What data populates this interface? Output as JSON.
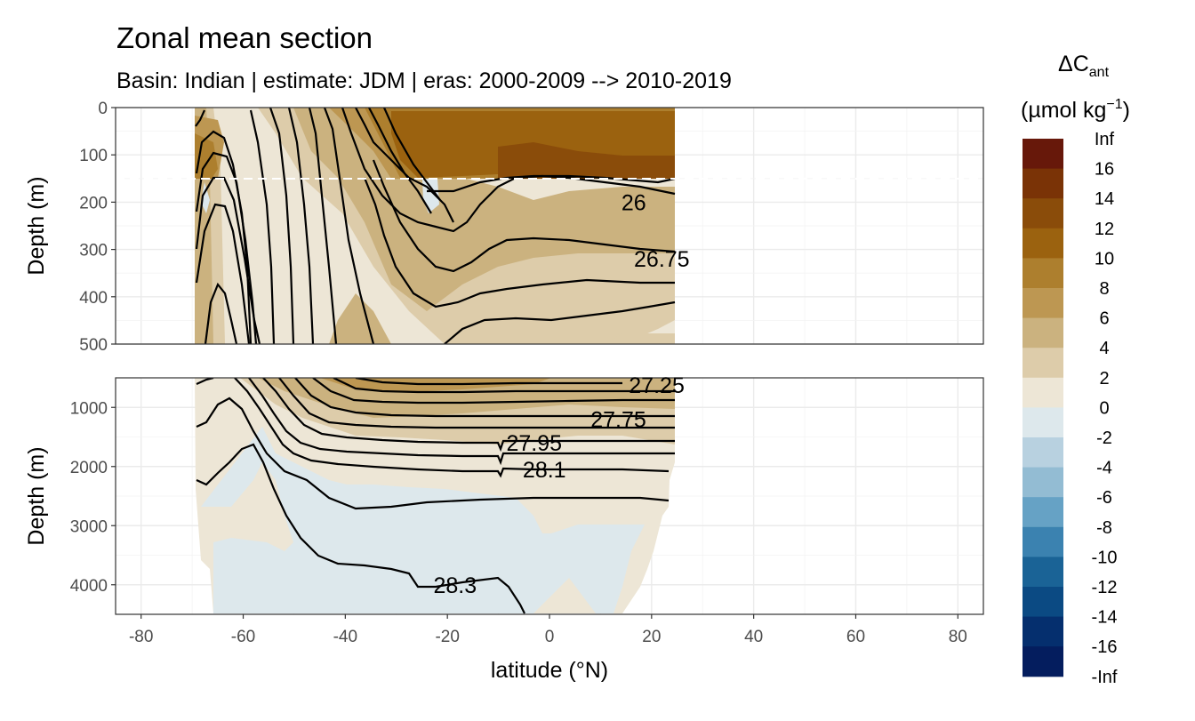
{
  "chart_data": {
    "type": "heatmap",
    "title": "Zonal mean section",
    "subtitle": "Basin: Indian | estimate: JDM  | eras: 2000-2009 --> 2010-2019",
    "xlabel": "latitude (°N)",
    "ylabel": "Depth (m)",
    "xlim": [
      -85,
      85
    ],
    "x_ticks": [
      -80,
      -60,
      -40,
      -20,
      0,
      20,
      40,
      60,
      80
    ],
    "panels": [
      {
        "name": "upper",
        "ylim": [
          500,
          0
        ],
        "y_ticks": [
          0,
          100,
          200,
          300,
          400,
          500
        ],
        "dashed_line_depth": 150
      },
      {
        "name": "lower",
        "ylim": [
          4500,
          500
        ],
        "y_ticks": [
          1000,
          2000,
          3000,
          4000
        ]
      }
    ],
    "legend": {
      "title_main": "ΔC",
      "title_sub": "ant",
      "title_unit_pre": "(µmol kg",
      "title_unit_sup": "−1",
      "title_unit_post": ")",
      "position": "right",
      "labels": [
        "Inf",
        "16",
        "14",
        "12",
        "10",
        "8",
        "6",
        "4",
        "2",
        "0",
        "-2",
        "-4",
        "-6",
        "-8",
        "-10",
        "-12",
        "-14",
        "-16",
        "-Inf"
      ],
      "colors": [
        "#67180a",
        "#7a3306",
        "#8a4c0a",
        "#9b620f",
        "#ad7f2e",
        "#bd9752",
        "#cbb27f",
        "#ddccaa",
        "#ede6d6",
        "#dde8ec",
        "#b8d1e0",
        "#93bcd3",
        "#66a2c5",
        "#3b82b0",
        "#1a6396",
        "#0b4a83",
        "#052f6e",
        "#041d5e"
      ]
    },
    "contours": [
      {
        "label": "26",
        "x": 16.5,
        "y": 200,
        "panel": "upper"
      },
      {
        "label": "26.75",
        "x": 22,
        "y": 320,
        "panel": "upper"
      },
      {
        "label": "27.25",
        "x": 21,
        "y": 620,
        "panel": "lower"
      },
      {
        "label": "27.75",
        "x": 13.5,
        "y": 1200,
        "panel": "lower"
      },
      {
        "label": "27.95",
        "x": -3,
        "y": 1600,
        "panel": "lower"
      },
      {
        "label": "28.1",
        "x": -1,
        "y": 2050,
        "panel": "lower"
      },
      {
        "label": "28.3",
        "x": -18.5,
        "y": 4000,
        "panel": "lower"
      }
    ]
  }
}
